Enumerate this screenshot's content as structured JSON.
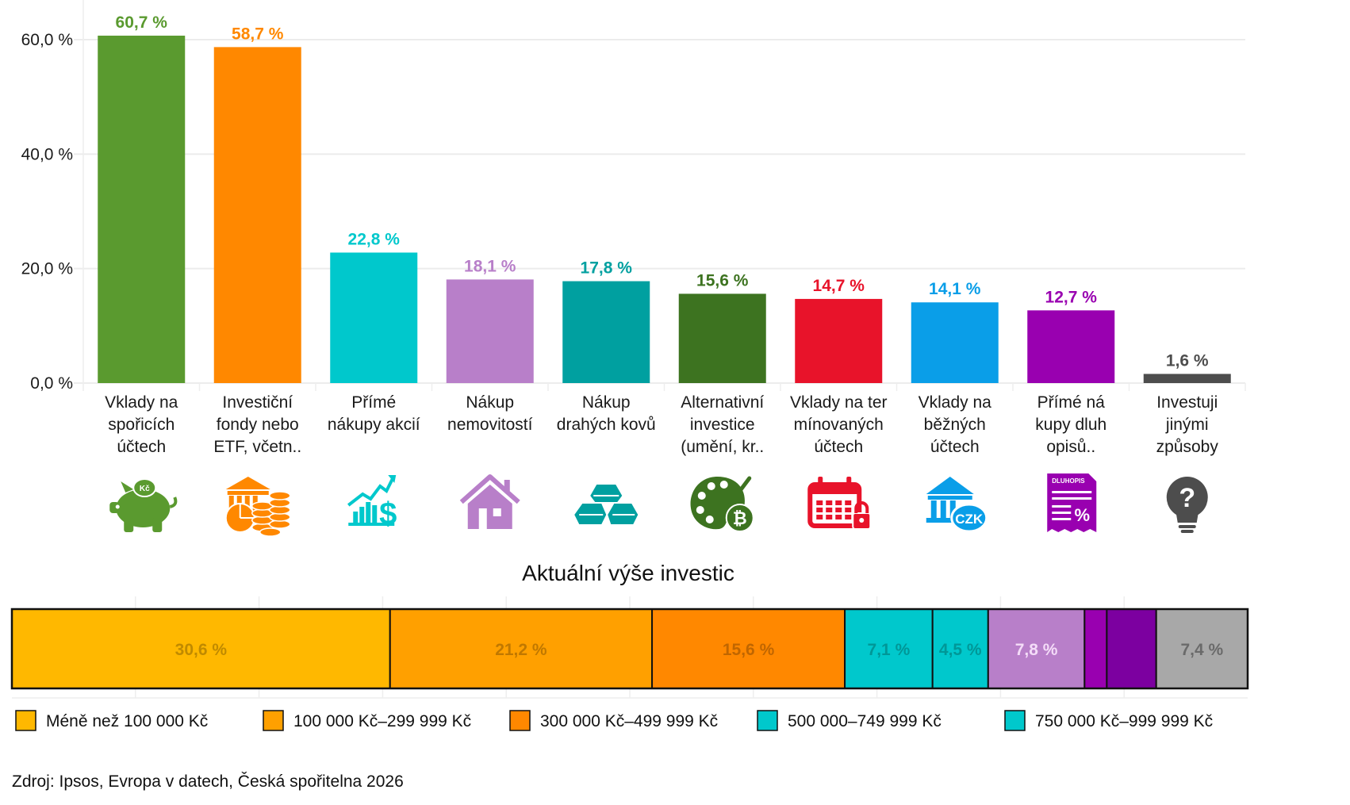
{
  "chart_data": [
    {
      "type": "bar",
      "title": "",
      "xlabel": "",
      "ylabel": "",
      "ylim": [
        0,
        60
      ],
      "yticks": [
        "0,0 %",
        "20,0 %",
        "40,0 %",
        "60,0 %"
      ],
      "ytick_values": [
        0,
        20,
        40,
        60
      ],
      "grid": true,
      "categories": [
        "Vklady na spořicích účtech",
        "Investiční fondy nebo ETF, včetn..",
        "Přímé nákupy akcií",
        "Nákup nemovitostí",
        "Nákup drahých kovů",
        "Alternativní investice (umění, kr..",
        "Vklady na ter mínovaných účtech",
        "Vklady na běžných účtech",
        "Přímé ná kupy dluh opisů..",
        "Investuji jinými způsoby"
      ],
      "category_label_lines": [
        [
          "Vklady na",
          "spořicích",
          "účtech"
        ],
        [
          "Investiční",
          "fondy nebo",
          "ETF, včetn.."
        ],
        [
          "Přímé",
          "nákupy akcií"
        ],
        [
          "Nákup",
          "nemovitostí"
        ],
        [
          "Nákup",
          "drahých kovů"
        ],
        [
          "Alternativní",
          "investice",
          "(umění, kr.."
        ],
        [
          "Vklady na ter",
          "mínovaných",
          "účtech"
        ],
        [
          "Vklady na",
          "běžných",
          "účtech"
        ],
        [
          "Přímé ná",
          "kupy dluh",
          "opisů.."
        ],
        [
          "Investuji",
          "jinými",
          "způsoby"
        ]
      ],
      "values": [
        60.7,
        58.7,
        22.8,
        18.1,
        17.8,
        15.6,
        14.7,
        14.1,
        12.7,
        1.6
      ],
      "value_labels": [
        "60,7 %",
        "58,7 %",
        "22,8 %",
        "18,1 %",
        "17,8 %",
        "15,6 %",
        "14,7 %",
        "14,1 %",
        "12,7 %",
        "1,6 %"
      ],
      "colors": [
        "#5a9a2f",
        "#ff8800",
        "#00c8cc",
        "#b87fc9",
        "#00a0a0",
        "#3d7320",
        "#e8132a",
        "#0a9ee8",
        "#9900b0",
        "#4d4d4d"
      ],
      "icons": [
        "piggy-bank-czk-icon",
        "bank-fund-coins-icon",
        "stock-chart-dollar-icon",
        "house-icon",
        "gold-bars-icon",
        "palette-bitcoin-icon",
        "calendar-lock-icon",
        "bank-czk-icon",
        "bond-document-icon",
        "lightbulb-question-icon"
      ]
    },
    {
      "type": "bar",
      "orientation": "horizontal-stacked",
      "title": "Aktuální výše investic",
      "xlim": [
        0,
        100
      ],
      "segments": [
        {
          "name": "Méně než 100 000 Kč",
          "value": 30.6,
          "label": "30,6 %",
          "color": "#ffb800",
          "label_color": "#c08a00"
        },
        {
          "name": "100 000 Kč–299 999 Kč",
          "value": 21.2,
          "label": "21,2 %",
          "color": "#ffa000",
          "label_color": "#c07800"
        },
        {
          "name": "300 000 Kč–499 999 Kč",
          "value": 15.6,
          "label": "15,6 %",
          "color": "#ff8800",
          "label_color": "#c06600"
        },
        {
          "name": "500 000–749 999 Kč",
          "value": 7.1,
          "label": "7,1 %",
          "color": "#00c8cc",
          "label_color": "#009797"
        },
        {
          "name": "750 000 Kč–999 999 Kč",
          "value": 4.5,
          "label": "4,5 %",
          "color": "#00c8cc",
          "label_color": "#009797"
        },
        {
          "name": "",
          "value": 7.8,
          "label": "7,8 %",
          "color": "#b87fc9",
          "label_color": "#f4dcf8"
        },
        {
          "name": "",
          "value": 1.8,
          "label": "",
          "color": "#9900b0",
          "label_color": "#ffffff"
        },
        {
          "name": "",
          "value": 4.0,
          "label": "",
          "color": "#7c00a0",
          "label_color": "#ffffff"
        },
        {
          "name": "",
          "value": 7.4,
          "label": "7,4 %",
          "color": "#a8a8a8",
          "label_color": "#6a6a6a"
        }
      ],
      "legend": [
        {
          "label": "Méně než 100 000 Kč",
          "color": "#ffb800"
        },
        {
          "label": "100 000 Kč–299 999 Kč",
          "color": "#ffa000"
        },
        {
          "label": "300 000 Kč–499 999 Kč",
          "color": "#ff8800"
        },
        {
          "label": "500 000–749 999 Kč",
          "color": "#00c8cc"
        },
        {
          "label": "750 000 Kč–999 999 Kč",
          "color": "#00c8cc"
        }
      ],
      "legend_position": "bottom"
    }
  ],
  "source": "Zdroj: Ipsos, Evropa v datech, Česká spořitelna 2026"
}
